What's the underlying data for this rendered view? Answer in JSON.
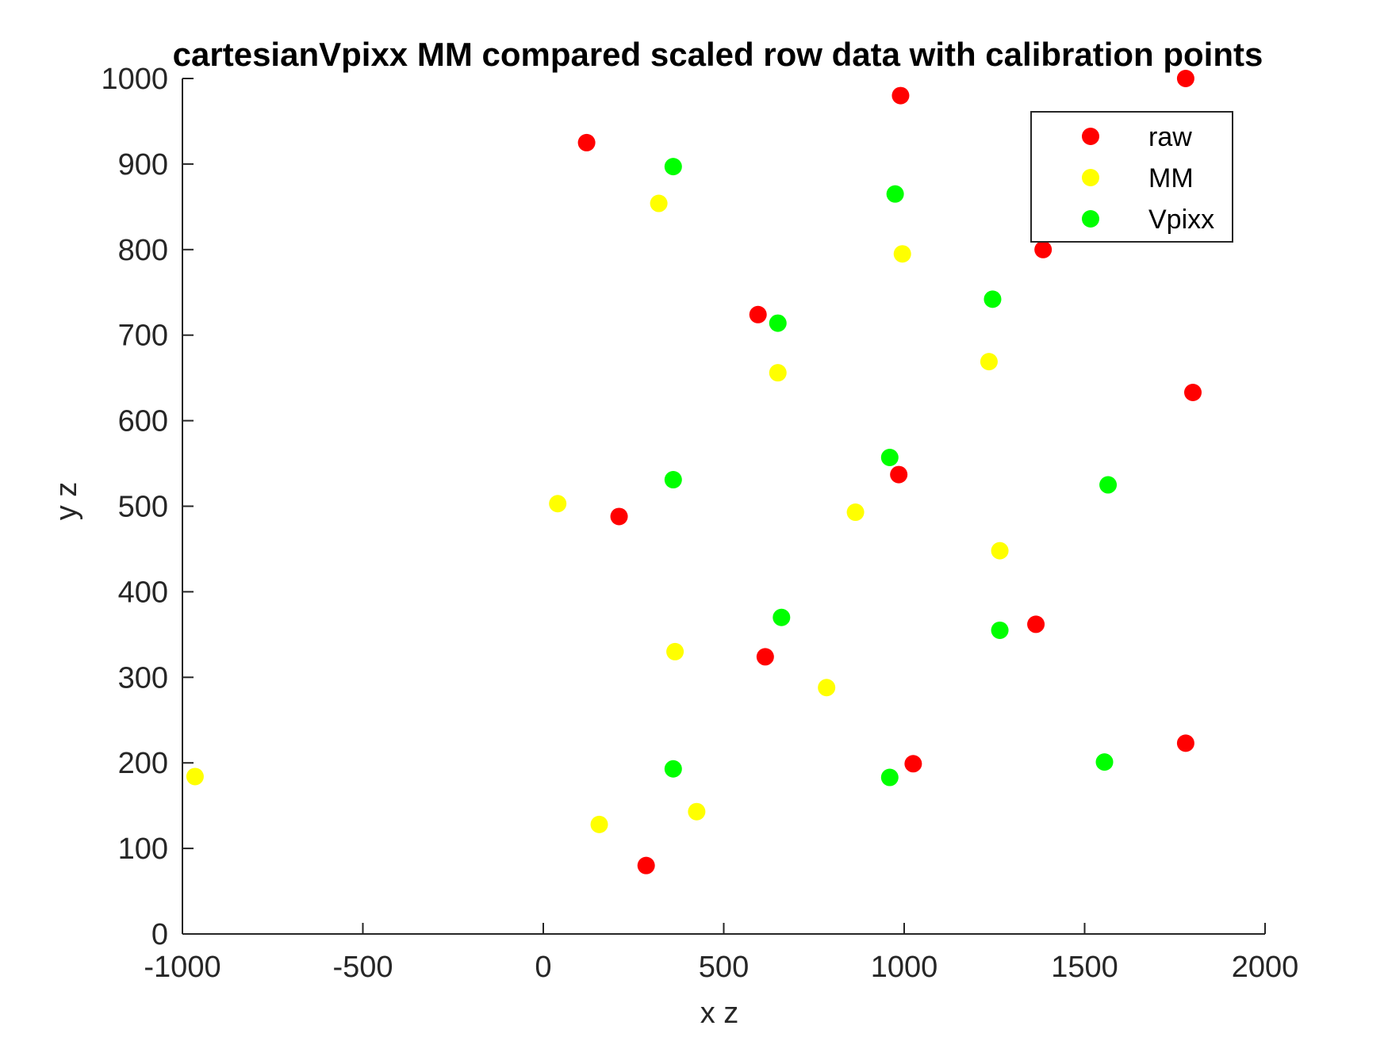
{
  "chart_data": {
    "type": "scatter",
    "title": "cartesianVpixx MM compared scaled row data with calibration points",
    "xlabel": "x z",
    "ylabel": "y z",
    "xlim": [
      -1000,
      2000
    ],
    "ylim": [
      0,
      1000
    ],
    "xticks": [
      "-1000",
      "-500",
      "0",
      "500",
      "1000",
      "1500",
      "2000"
    ],
    "yticks": [
      "0",
      "100",
      "200",
      "300",
      "400",
      "500",
      "600",
      "700",
      "800",
      "900",
      "1000"
    ],
    "grid": false,
    "legend_position": "top-right",
    "series": [
      {
        "name": "raw",
        "color": "#ff0000",
        "points": [
          [
            120,
            925
          ],
          [
            990,
            980
          ],
          [
            1780,
            1000
          ],
          [
            595,
            724
          ],
          [
            1385,
            800
          ],
          [
            1800,
            633
          ],
          [
            210,
            488
          ],
          [
            985,
            537
          ],
          [
            1365,
            362
          ],
          [
            615,
            324
          ],
          [
            1025,
            199
          ],
          [
            1780,
            223
          ],
          [
            285,
            80
          ]
        ]
      },
      {
        "name": "MM",
        "color": "#ffff00",
        "points": [
          [
            320,
            854
          ],
          [
            995,
            795
          ],
          [
            1235,
            669
          ],
          [
            650,
            656
          ],
          [
            40,
            503
          ],
          [
            865,
            493
          ],
          [
            1265,
            448
          ],
          [
            365,
            330
          ],
          [
            785,
            288
          ],
          [
            -965,
            184
          ],
          [
            155,
            128
          ],
          [
            425,
            143
          ]
        ]
      },
      {
        "name": "Vpixx",
        "color": "#00ff00",
        "points": [
          [
            360,
            897
          ],
          [
            975,
            865
          ],
          [
            1245,
            742
          ],
          [
            650,
            714
          ],
          [
            960,
            557
          ],
          [
            360,
            531
          ],
          [
            1565,
            525
          ],
          [
            660,
            370
          ],
          [
            1265,
            355
          ],
          [
            360,
            193
          ],
          [
            960,
            183
          ],
          [
            1555,
            201
          ]
        ]
      }
    ]
  }
}
